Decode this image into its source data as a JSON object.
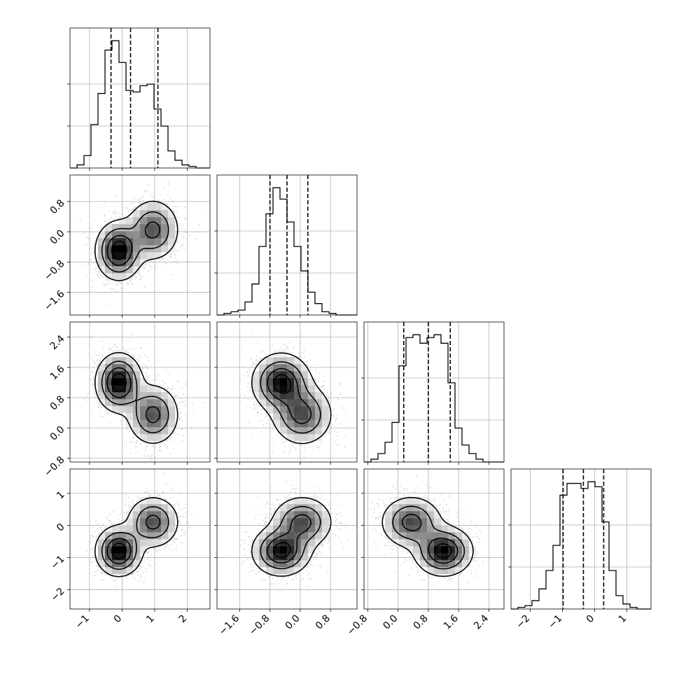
{
  "chart_data": {
    "type": "corner",
    "title": "",
    "params": [
      {
        "index": 0,
        "range": [
          -1.6,
          2.7
        ],
        "ticks": [
          -1,
          0,
          1,
          2
        ],
        "tick_labels": [
          "−1",
          "0",
          "1",
          "2"
        ],
        "quantiles": [
          -0.34,
          0.26,
          1.1
        ],
        "hist_edges_start": -1.6,
        "hist_bin_width": 0.215,
        "hist_counts": [
          0,
          2,
          8,
          28,
          48,
          76,
          82,
          68,
          50,
          49,
          53,
          54,
          38,
          27,
          11,
          5,
          2,
          1,
          0,
          0
        ]
      },
      {
        "index": 1,
        "range": [
          -2.2,
          1.5
        ],
        "ticks": [
          -1.6,
          -0.8,
          0.0,
          0.8
        ],
        "tick_labels": [
          "−1.6",
          "−0.8",
          "0.0",
          "0.8"
        ],
        "quantiles": [
          -0.8,
          -0.35,
          0.2
        ],
        "hist_edges_start": -2.2,
        "hist_bin_width": 0.185,
        "hist_counts": [
          0,
          1,
          2,
          3,
          8,
          19,
          42,
          62,
          78,
          71,
          57,
          42,
          27,
          14,
          7,
          2,
          1,
          0,
          0,
          0
        ]
      },
      {
        "index": 2,
        "range": [
          -0.9,
          2.8
        ],
        "ticks": [
          -0.8,
          0.0,
          0.8,
          1.6,
          2.4
        ],
        "tick_labels": [
          "−0.8",
          "0.0",
          "0.8",
          "1.6",
          "2.4"
        ],
        "quantiles": [
          0.15,
          0.8,
          1.38
        ],
        "hist_edges_start": -0.9,
        "hist_bin_width": 0.185,
        "hist_counts": [
          0,
          1,
          3,
          7,
          14,
          34,
          44,
          45,
          42,
          44,
          45,
          42,
          28,
          12,
          6,
          3,
          1,
          0,
          0,
          0
        ]
      },
      {
        "index": 3,
        "range": [
          -2.6,
          1.75
        ],
        "ticks": [
          -2,
          -1,
          0,
          1
        ],
        "tick_labels": [
          "−2",
          "−1",
          "0",
          "1"
        ],
        "quantiles": [
          -0.98,
          -0.35,
          0.28
        ],
        "hist_edges_start": -2.6,
        "hist_bin_width": 0.2175,
        "hist_counts": [
          0,
          1,
          2,
          5,
          12,
          23,
          38,
          68,
          75,
          75,
          72,
          76,
          73,
          52,
          23,
          8,
          3,
          1,
          0,
          0
        ]
      }
    ],
    "components": [
      {
        "weight": 0.55,
        "mean": [
          -0.1,
          -0.5,
          1.2,
          -0.8
        ],
        "sd": [
          0.35,
          0.38,
          0.38,
          0.38
        ]
      },
      {
        "weight": 0.45,
        "mean": [
          0.95,
          0.05,
          0.35,
          0.1
        ],
        "sd": [
          0.4,
          0.4,
          0.4,
          0.4
        ]
      }
    ]
  },
  "legend": "none",
  "grid": true,
  "colors": {
    "contour": "#000000",
    "scatter": "#b5b5b5",
    "density_dark": "#000000"
  }
}
